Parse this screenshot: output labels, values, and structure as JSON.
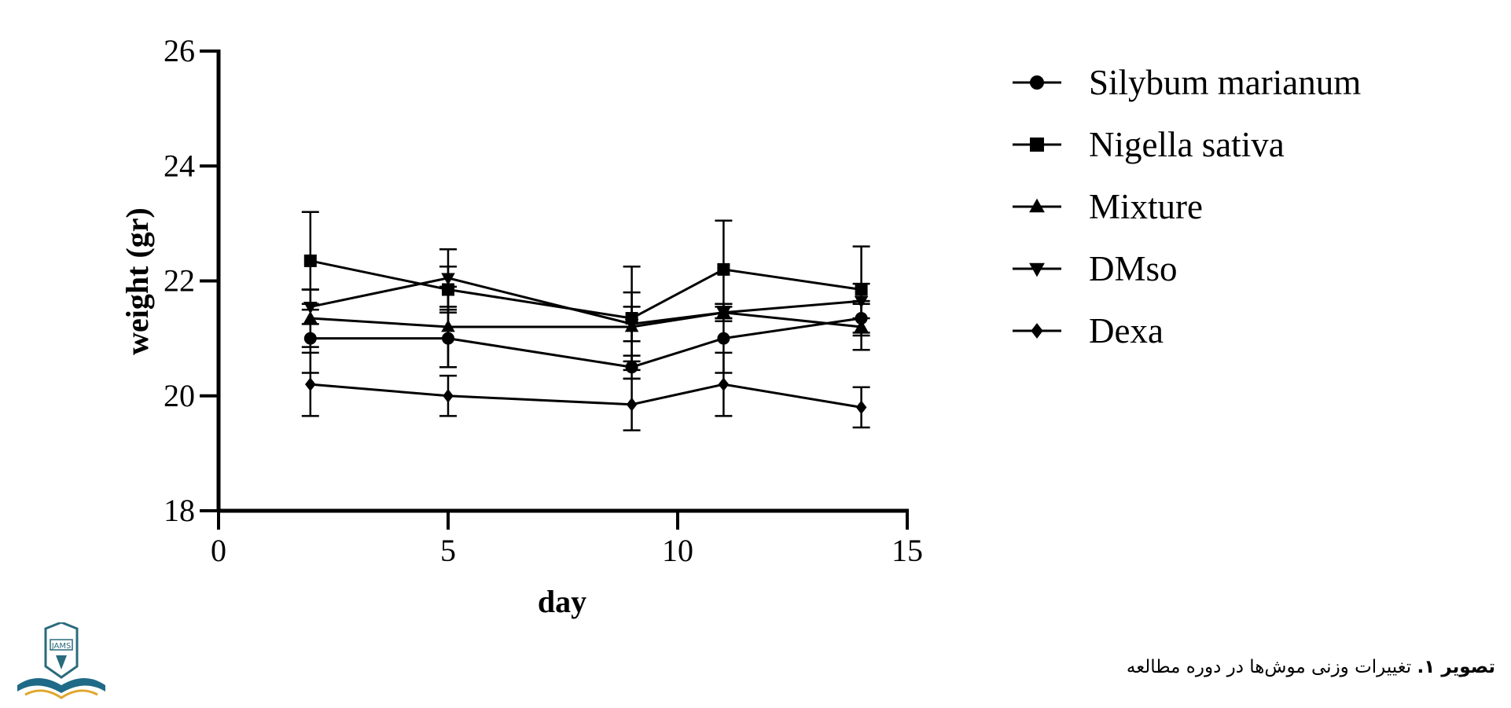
{
  "chart_data": {
    "type": "line",
    "title": "",
    "xlabel": "day",
    "ylabel": "weight (gr)",
    "xlim": [
      0,
      15
    ],
    "ylim": [
      18,
      26
    ],
    "x_ticks": [
      0,
      5,
      10,
      15
    ],
    "y_ticks": [
      18,
      20,
      22,
      24,
      26
    ],
    "grid": false,
    "legend_position": "right",
    "x": [
      2,
      5,
      9,
      11,
      14
    ],
    "series": [
      {
        "name": "Silybum marianum",
        "marker": "circle",
        "values": [
          21.0,
          21.0,
          20.5,
          21.0,
          21.35
        ],
        "errors": [
          0.6,
          0.5,
          0.2,
          0.6,
          0.3
        ]
      },
      {
        "name": "Nigella sativa",
        "marker": "square",
        "values": [
          22.35,
          21.85,
          21.35,
          22.2,
          21.85
        ],
        "errors": [
          0.85,
          0.4,
          0.9,
          0.85,
          0.75
        ]
      },
      {
        "name": "Mixture",
        "marker": "triangle-up",
        "values": [
          21.35,
          21.2,
          21.2,
          21.45,
          21.2
        ],
        "errors": [
          0.5,
          0.7,
          0.6,
          0.1,
          0.4
        ]
      },
      {
        "name": "DMso",
        "marker": "triangle-down",
        "values": [
          21.55,
          22.05,
          21.25,
          21.45,
          21.65
        ],
        "errors": [
          0.3,
          0.5,
          0.3,
          0.15,
          0.3
        ]
      },
      {
        "name": "Dexa",
        "marker": "diamond",
        "values": [
          20.2,
          20.0,
          19.85,
          20.2,
          19.8
        ],
        "errors": [
          0.55,
          0.35,
          0.45,
          0.55,
          0.35
        ]
      }
    ]
  },
  "caption": {
    "label": "تصویر ۱.",
    "text": "تغییرات وزنی موش‌ها در دوره مطالعه"
  },
  "logo": {
    "text": "JAMS"
  }
}
